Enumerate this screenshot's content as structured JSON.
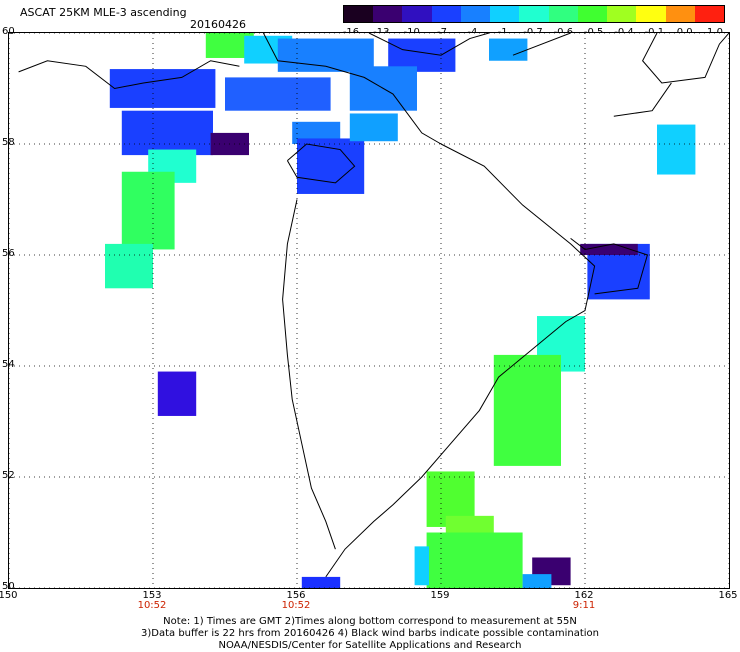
{
  "header": {
    "title": "ASCAT 25KM MLE-3 ascending",
    "date": "20160426"
  },
  "colorbar": {
    "labels": [
      "-16",
      "-13",
      "-10",
      "-7",
      "-4",
      "-1",
      "-0.7",
      "-0.6",
      "-0.5",
      "-0.4",
      "-0.1",
      "0.0",
      "1.0"
    ],
    "colors": [
      "#1a0020",
      "#3a0070",
      "#3010c0",
      "#1a40ff",
      "#1880ff",
      "#10d0ff",
      "#20ffd0",
      "#30ff80",
      "#40ff30",
      "#a0ff20",
      "#ffff10",
      "#ff9010",
      "#ff2010"
    ]
  },
  "map": {
    "x_axis": {
      "min": 150,
      "max": 165,
      "ticks": [
        "150",
        "153",
        "156",
        "159",
        "162",
        "165"
      ]
    },
    "y_axis": {
      "min": 50,
      "max": 60,
      "ticks": [
        "50",
        "52",
        "54",
        "56",
        "58",
        "60"
      ]
    },
    "grid": true,
    "pass_times": [
      {
        "lon": 153,
        "time": "10:52"
      },
      {
        "lon": 156,
        "time": "10:52"
      },
      {
        "lon": 162,
        "time": "9:11"
      }
    ],
    "cells": [
      {
        "lon": 154.6,
        "lat": 59.8,
        "w": 1.0,
        "h": 0.5,
        "color": "#40ff40"
      },
      {
        "lon": 155.4,
        "lat": 59.7,
        "w": 1.0,
        "h": 0.5,
        "color": "#10d0ff"
      },
      {
        "lon": 156.6,
        "lat": 59.6,
        "w": 2.0,
        "h": 0.6,
        "color": "#1880ff"
      },
      {
        "lon": 158.6,
        "lat": 59.6,
        "w": 1.4,
        "h": 0.6,
        "color": "#1a40ff"
      },
      {
        "lon": 160.4,
        "lat": 59.7,
        "w": 0.8,
        "h": 0.4,
        "color": "#10a0ff"
      },
      {
        "lon": 153.2,
        "lat": 59.0,
        "w": 2.2,
        "h": 0.7,
        "color": "#1a40ff"
      },
      {
        "lon": 155.6,
        "lat": 58.9,
        "w": 2.2,
        "h": 0.6,
        "color": "#2060ff"
      },
      {
        "lon": 157.8,
        "lat": 59.0,
        "w": 1.4,
        "h": 0.8,
        "color": "#1880ff"
      },
      {
        "lon": 153.3,
        "lat": 58.2,
        "w": 1.9,
        "h": 0.8,
        "color": "#1a40ff"
      },
      {
        "lon": 154.6,
        "lat": 58.0,
        "w": 0.8,
        "h": 0.4,
        "color": "#3a0070"
      },
      {
        "lon": 156.4,
        "lat": 58.2,
        "w": 1.0,
        "h": 0.4,
        "color": "#1880ff"
      },
      {
        "lon": 156.7,
        "lat": 57.6,
        "w": 1.4,
        "h": 1.0,
        "color": "#1a40ff"
      },
      {
        "lon": 157.6,
        "lat": 58.3,
        "w": 1.0,
        "h": 0.5,
        "color": "#10a0ff"
      },
      {
        "lon": 153.4,
        "lat": 57.6,
        "w": 1.0,
        "h": 0.6,
        "color": "#20ffd0"
      },
      {
        "lon": 152.9,
        "lat": 56.8,
        "w": 1.1,
        "h": 1.4,
        "color": "#30ff60"
      },
      {
        "lon": 152.5,
        "lat": 55.8,
        "w": 1.0,
        "h": 0.8,
        "color": "#20ffb0"
      },
      {
        "lon": 153.5,
        "lat": 53.5,
        "w": 0.8,
        "h": 0.8,
        "color": "#3010e0"
      },
      {
        "lon": 162.7,
        "lat": 55.7,
        "w": 1.3,
        "h": 1.0,
        "color": "#1a40ff"
      },
      {
        "lon": 162.5,
        "lat": 56.1,
        "w": 1.2,
        "h": 0.2,
        "color": "#3a0070"
      },
      {
        "lon": 163.9,
        "lat": 57.9,
        "w": 0.8,
        "h": 0.9,
        "color": "#10d0ff"
      },
      {
        "lon": 161.5,
        "lat": 54.4,
        "w": 1.0,
        "h": 1.0,
        "color": "#20ffd0"
      },
      {
        "lon": 160.8,
        "lat": 53.2,
        "w": 1.4,
        "h": 2.0,
        "color": "#40ff40"
      },
      {
        "lon": 159.2,
        "lat": 51.6,
        "w": 1.0,
        "h": 1.0,
        "color": "#50ff30"
      },
      {
        "lon": 159.6,
        "lat": 51.0,
        "w": 1.0,
        "h": 0.6,
        "color": "#70ff30"
      },
      {
        "lon": 159.7,
        "lat": 50.4,
        "w": 2.0,
        "h": 1.2,
        "color": "#40ff40"
      },
      {
        "lon": 158.6,
        "lat": 50.4,
        "w": 0.3,
        "h": 0.7,
        "color": "#10d0ff"
      },
      {
        "lon": 161.3,
        "lat": 50.3,
        "w": 0.8,
        "h": 0.5,
        "color": "#3a0070"
      },
      {
        "lon": 161.0,
        "lat": 50.1,
        "w": 0.6,
        "h": 0.3,
        "color": "#10a0ff"
      },
      {
        "lon": 156.5,
        "lat": 50.1,
        "w": 0.8,
        "h": 0.2,
        "color": "#1a30ff"
      }
    ]
  },
  "footer": {
    "line1": "Note: 1) Times are GMT 2)Times along bottom correspond to measurement at 55N",
    "line2": "3)Data buffer is 22 hrs from 20160426 4) Black wind barbs indicate possible contamination",
    "line3": "NOAA/NESDIS/Center for Satellite Applications and Research"
  }
}
